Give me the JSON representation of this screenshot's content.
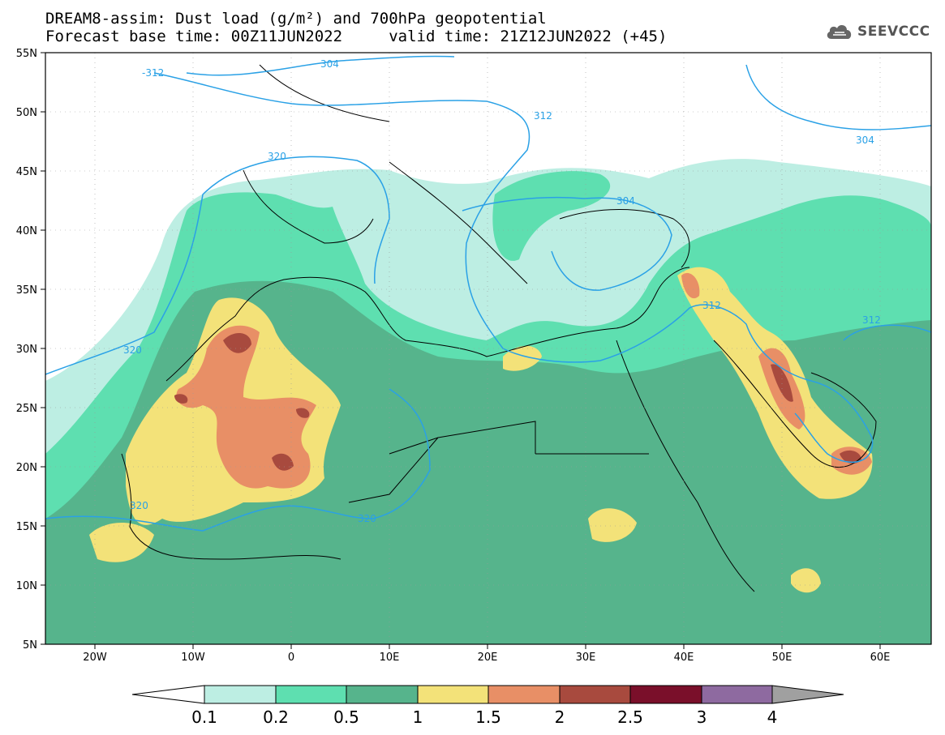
{
  "header": {
    "line1": "DREAM8-assim: Dust load (g/m²) and 700hPa geopotential",
    "line2": "Forecast base time: 00Z11JUN2022     valid time: 21Z12JUN2022 (+45)"
  },
  "logo": {
    "text": "SEEVCCC",
    "icon": "cloud-icon"
  },
  "map": {
    "lon_range": [
      -25,
      65
    ],
    "lat_range": [
      5,
      55
    ],
    "lat_ticks": [
      "5N",
      "10N",
      "15N",
      "20N",
      "25N",
      "30N",
      "35N",
      "40N",
      "45N",
      "50N",
      "55N"
    ],
    "lon_ticks": [
      "20W",
      "10W",
      "0",
      "10E",
      "20E",
      "30E",
      "40E",
      "50E",
      "60E"
    ],
    "contour_labels": [
      "-312",
      "304",
      "312",
      "320",
      "320",
      "304",
      "304",
      "312",
      "312",
      "320",
      "320"
    ]
  },
  "colorbar": {
    "labels": [
      "0.1",
      "0.2",
      "0.5",
      "1",
      "1.5",
      "2",
      "2.5",
      "3",
      "4"
    ],
    "colors": [
      "#ffffff",
      "#bdeee3",
      "#5edfb0",
      "#56b48c",
      "#f3e279",
      "#e88f66",
      "#a84a3e",
      "#7a0f2a",
      "#8e6aa0",
      "#a0a0a0"
    ]
  }
}
